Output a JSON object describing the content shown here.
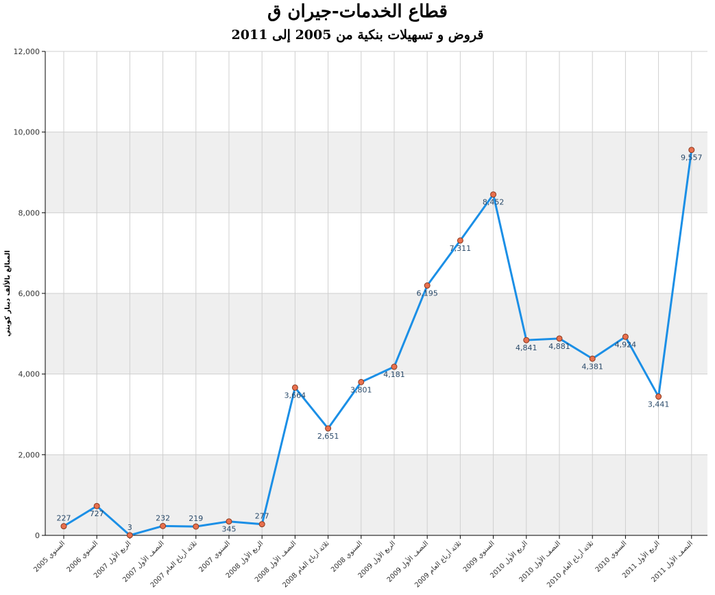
{
  "chart_data": {
    "type": "line",
    "title": "قطاع الخدمات-جيران ق",
    "subtitle": "قروض و تسهيلات بنكية من 2005 إلى 2011",
    "ylabel": "المبالغ بالألف دينار كويتي",
    "ylim": [
      0,
      12000
    ],
    "yticks": [
      0,
      2000,
      4000,
      6000,
      8000,
      10000,
      12000
    ],
    "ytick_labels": [
      "0",
      "2,000",
      "4,000",
      "6,000",
      "8,000",
      "10,000",
      "12,000"
    ],
    "grid": true,
    "categories": [
      "السنوي 2005",
      "السنوي 2006",
      "الربع الأول 2007",
      "النصف الأول 2007",
      "ثلاثة أرباع العام 2007",
      "السنوي 2007",
      "الربع الأول 2008",
      "النصف الأول 2008",
      "ثلاثة أرباع العام 2008",
      "السنوي 2008",
      "الربع الأول 2009",
      "النصف الأول 2009",
      "ثلاثة أرباع العام 2009",
      "السنوي 2009",
      "الربع الأول 2010",
      "النصف الأول 2010",
      "ثلاثة أرباع العام 2010",
      "السنوي 2010",
      "الربع الأول 2011",
      "النصف الأول 2011"
    ],
    "values": [
      227,
      727,
      3,
      232,
      219,
      345,
      277,
      3664,
      2651,
      3801,
      4181,
      6195,
      7311,
      8452,
      4841,
      4881,
      4381,
      4924,
      3441,
      9557
    ],
    "value_labels": [
      "227",
      "727",
      "3",
      "232",
      "219",
      "345",
      "277",
      "3,664",
      "2,651",
      "3,801",
      "4,181",
      "6,195",
      "7,311",
      "8,452",
      "4,841",
      "4,881",
      "4,381",
      "4,924",
      "3,441",
      "9,557"
    ],
    "label_position": [
      "above",
      "below",
      "above",
      "above",
      "above",
      "below",
      "above",
      "below",
      "below",
      "below",
      "below",
      "below",
      "below",
      "below",
      "below",
      "below",
      "below",
      "below",
      "below",
      "below"
    ],
    "colors": {
      "line": "#1b8fe6",
      "marker_fill": "#e8704e",
      "marker_stroke": "#8a3a20",
      "band": "#efefef",
      "grid": "#cfcfcf"
    }
  }
}
